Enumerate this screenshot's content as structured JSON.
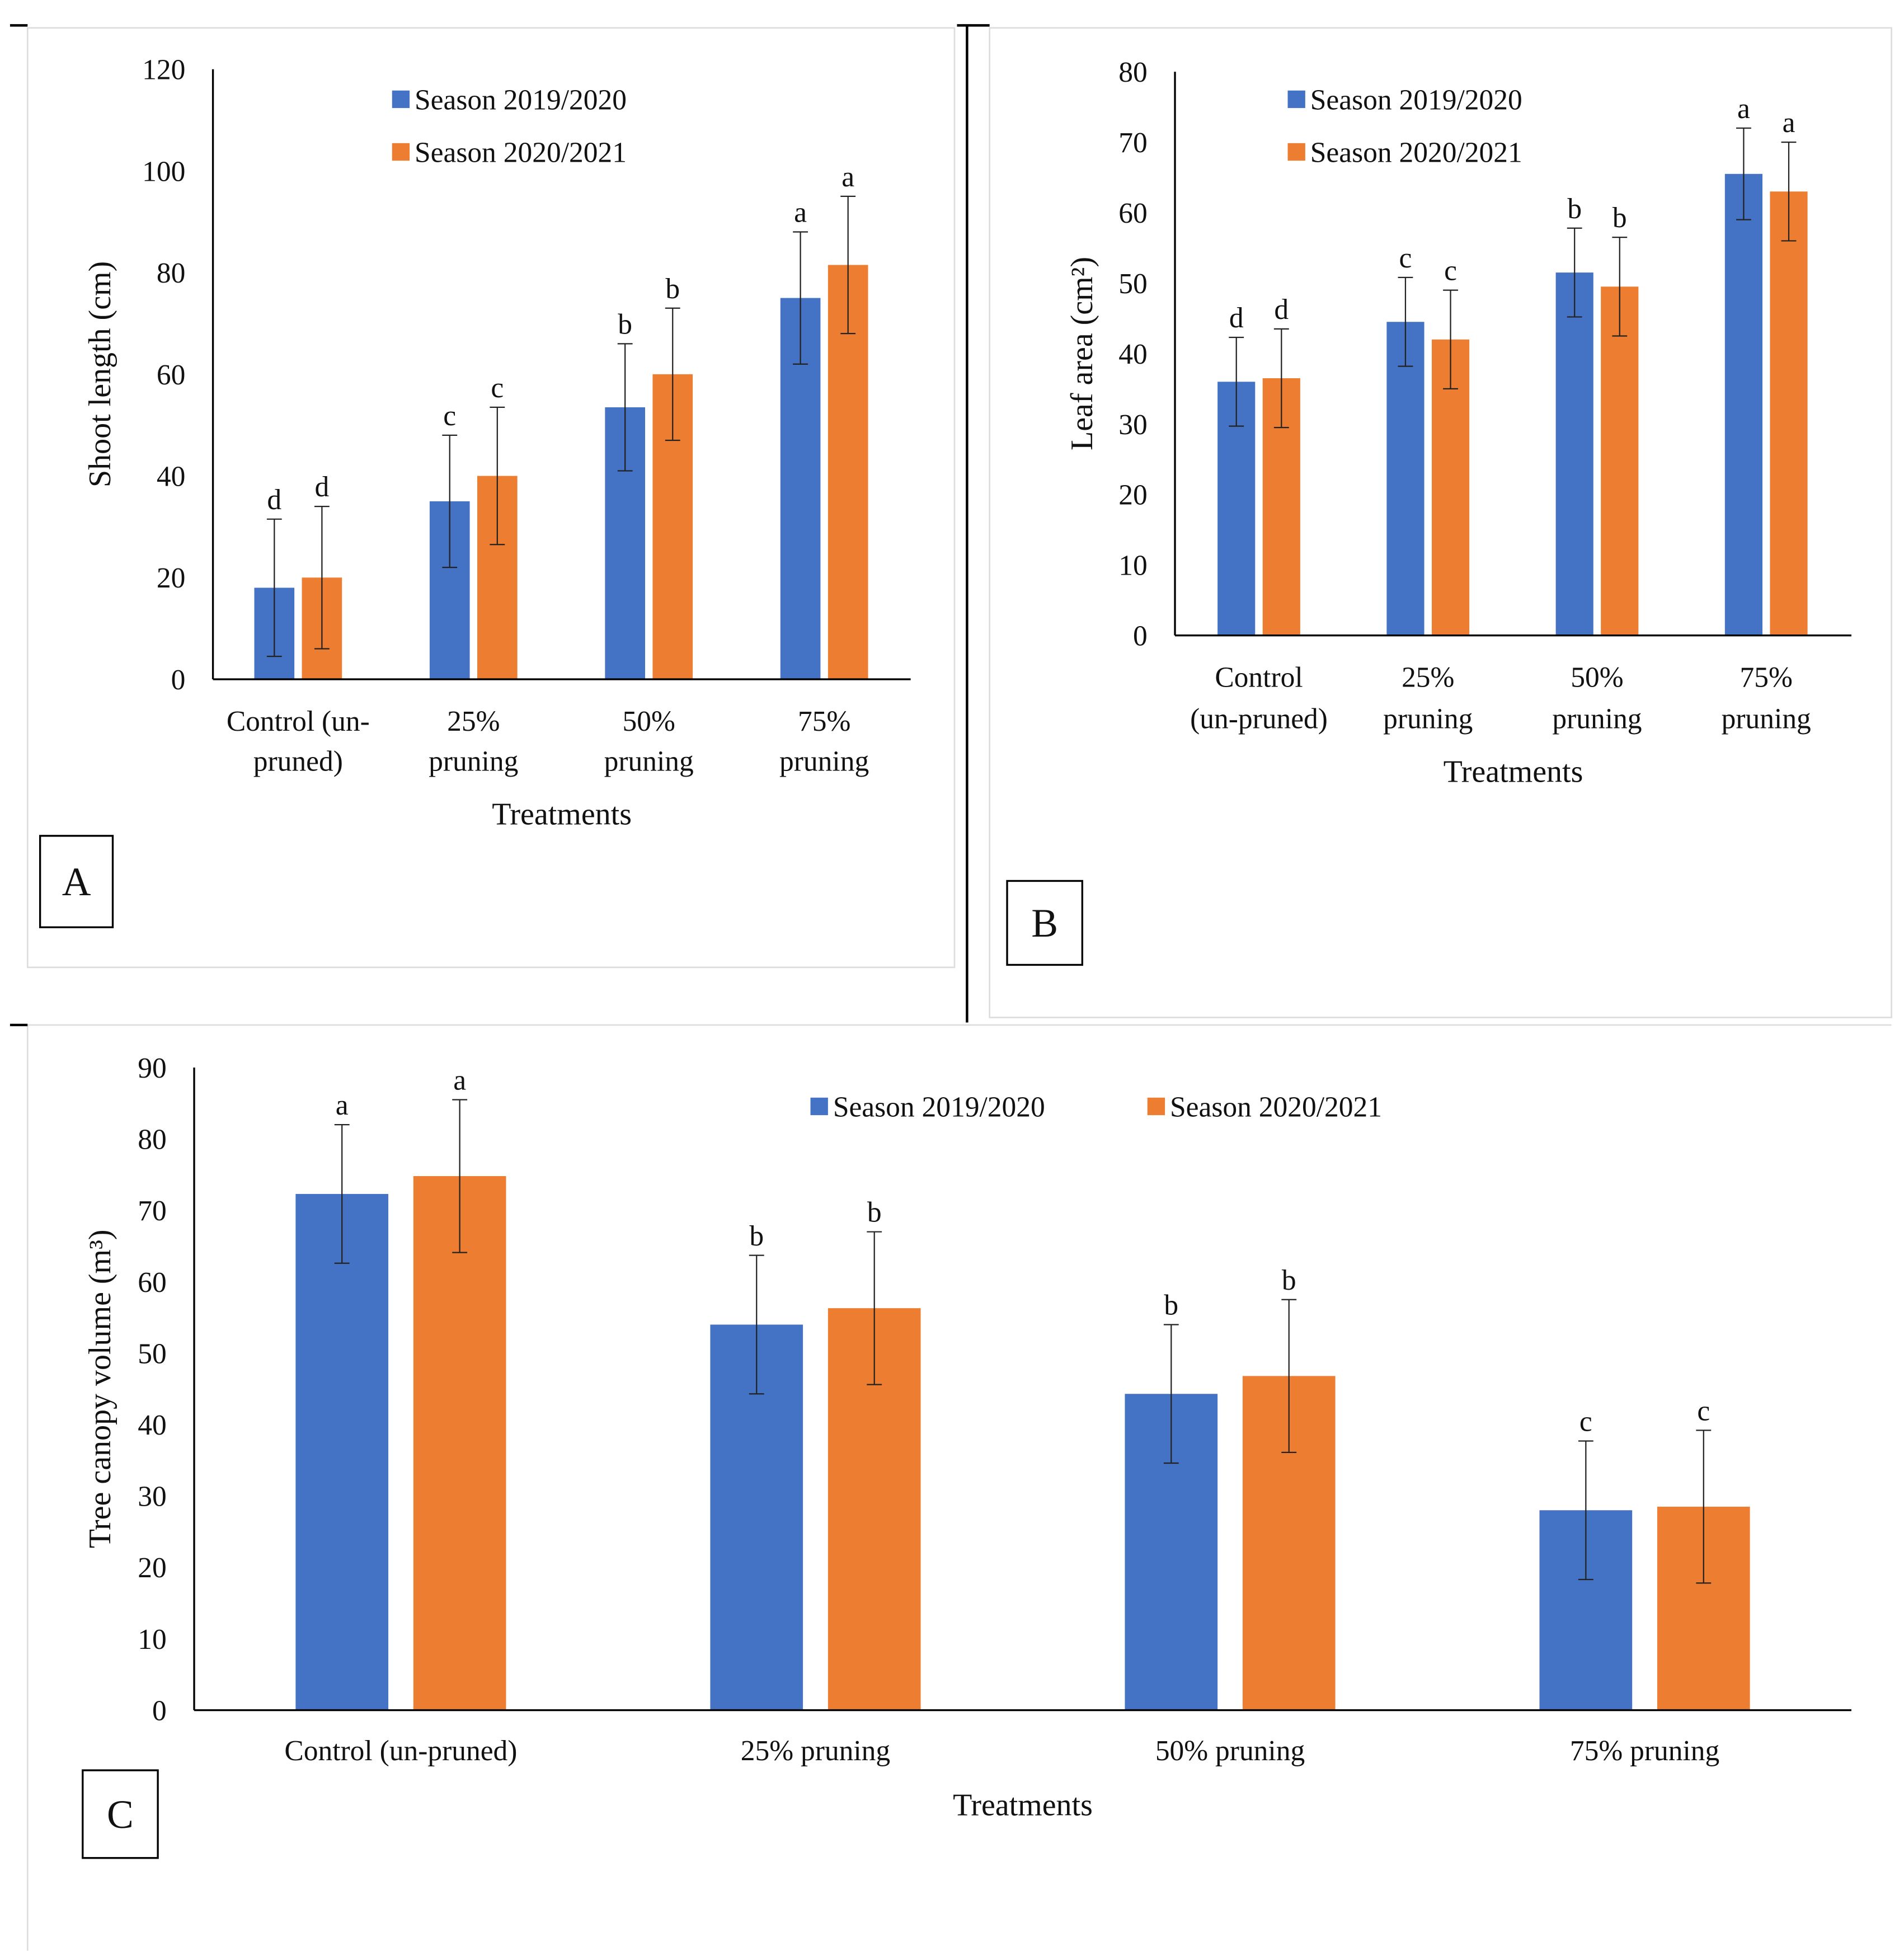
{
  "colors": {
    "series1": "#4472C4",
    "series2": "#ED7D31"
  },
  "chart_data": [
    {
      "panel_label": "A",
      "type": "bar",
      "xlabel": "Treatments",
      "ylabel": "Shoot length (cm)",
      "ylim": [
        0,
        120
      ],
      "yticks": [
        "0",
        "20",
        "40",
        "60",
        "80",
        "100",
        "120"
      ],
      "categories": [
        [
          "Control (un-",
          "pruned)"
        ],
        [
          "25%",
          "pruning"
        ],
        [
          "50%",
          "pruning"
        ],
        [
          "75%",
          "pruning"
        ]
      ],
      "legend_placement": "top-center",
      "series": [
        {
          "name": "Season 2019/2020",
          "values": [
            18,
            35,
            53.5,
            75
          ],
          "errors": [
            13.5,
            13,
            12.5,
            13
          ],
          "letters": [
            "d",
            "c",
            "b",
            "a"
          ]
        },
        {
          "name": "Season 2020/2021",
          "values": [
            20,
            40,
            60,
            81.5
          ],
          "errors": [
            14,
            13.5,
            13,
            13.5
          ],
          "letters": [
            "d",
            "c",
            "b",
            "a"
          ]
        }
      ]
    },
    {
      "panel_label": "B",
      "type": "bar",
      "xlabel": "Treatments",
      "ylabel": "Leaf area (cm²)",
      "ylim": [
        0,
        80
      ],
      "yticks": [
        "0",
        "10",
        "20",
        "30",
        "40",
        "50",
        "60",
        "70",
        "80"
      ],
      "categories": [
        [
          "Control",
          "(un-pruned)"
        ],
        [
          "25%",
          "pruning"
        ],
        [
          "50%",
          "pruning"
        ],
        [
          "75%",
          "pruning"
        ]
      ],
      "legend_placement": "top-left",
      "series": [
        {
          "name": "Season 2019/2020",
          "values": [
            36,
            44.5,
            51.5,
            65.5
          ],
          "errors": [
            6.3,
            6.3,
            6.3,
            6.5
          ],
          "letters": [
            "d",
            "c",
            "b",
            "a"
          ]
        },
        {
          "name": "Season 2020/2021",
          "values": [
            36.5,
            42,
            49.5,
            63
          ],
          "errors": [
            7,
            7,
            7,
            7
          ],
          "letters": [
            "d",
            "c",
            "b",
            "a"
          ]
        }
      ]
    },
    {
      "panel_label": "C",
      "type": "bar",
      "xlabel": "Treatments",
      "ylabel": "Tree canopy volume (m³)",
      "ylim": [
        0,
        90
      ],
      "yticks": [
        "0",
        "10",
        "20",
        "30",
        "40",
        "50",
        "60",
        "70",
        "80",
        "90"
      ],
      "categories": [
        [
          "Control (un-pruned)"
        ],
        [
          "25% pruning"
        ],
        [
          "50% pruning"
        ],
        [
          "75% pruning"
        ]
      ],
      "legend_placement": "top-center",
      "series": [
        {
          "name": "Season 2019/2020",
          "values": [
            72.3,
            54,
            44.3,
            28
          ],
          "errors": [
            9.7,
            9.7,
            9.7,
            9.7
          ],
          "letters": [
            "a",
            "b",
            "b",
            "c"
          ]
        },
        {
          "name": "Season 2020/2021",
          "values": [
            74.8,
            56.3,
            46.8,
            28.5
          ],
          "errors": [
            10.7,
            10.7,
            10.7,
            10.7
          ],
          "letters": [
            "a",
            "b",
            "b",
            "c"
          ]
        }
      ]
    }
  ]
}
